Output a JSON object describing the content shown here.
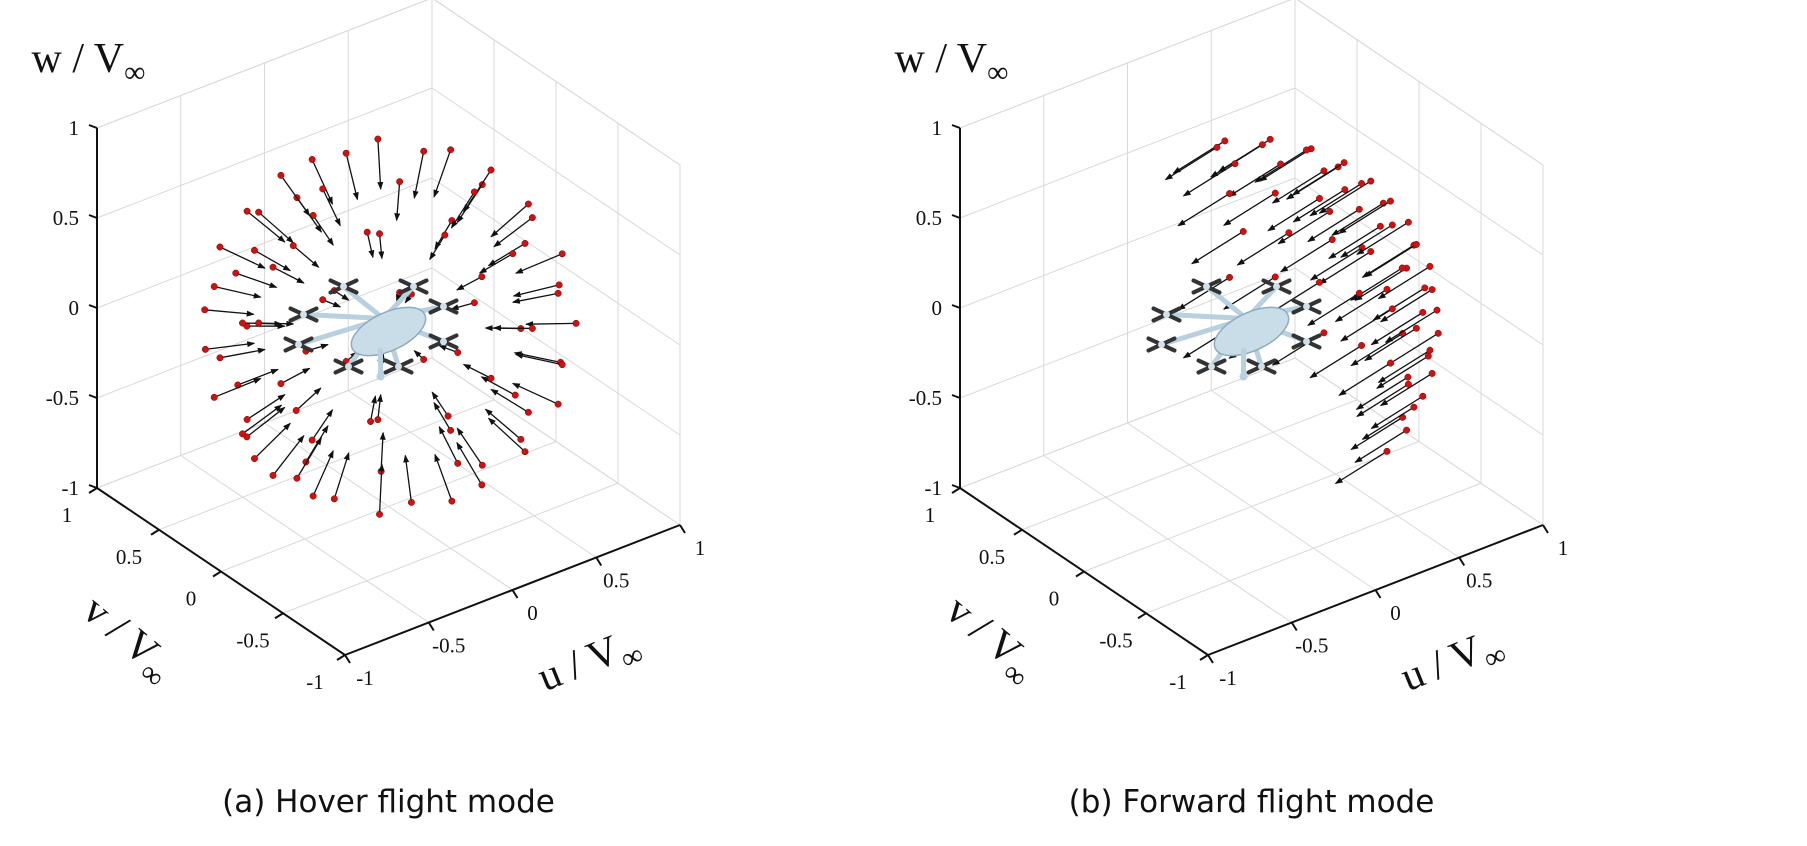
{
  "chart_data": [
    {
      "type": "scatter",
      "subtype": "3d-quiver",
      "caption": "(a) Hover flight mode",
      "xlabel": {
        "main": "u / V",
        "sub": "∞"
      },
      "ylabel": {
        "main": "v / V",
        "sub": "∞"
      },
      "zlabel": {
        "main": "w / V",
        "sub": "∞"
      },
      "xlim": [
        -1,
        1
      ],
      "ylim": [
        -1,
        1
      ],
      "zlim": [
        -1,
        1
      ],
      "xticks": [
        "-1",
        "-0.5",
        "0",
        "0.5",
        "1"
      ],
      "yticks": [
        "-1",
        "-0.5",
        "0",
        "0.5",
        "1"
      ],
      "zticks": [
        "-1",
        "-0.5",
        "0",
        "0.5",
        "1"
      ],
      "grid": true,
      "field": {
        "sample_radius": 0.9,
        "elevations_deg": [
          -60,
          -40,
          -20,
          0,
          20,
          40,
          60
        ],
        "azimuth_step_deg": 24,
        "azimuth_range_deg": [
          -180,
          180
        ],
        "flow": "inward",
        "speed": 0.24,
        "bias": [
          0,
          0,
          0
        ]
      },
      "marker_color": "#d11010",
      "arrow_color": "#111111",
      "model_color": "#c9dde9"
    },
    {
      "type": "scatter",
      "subtype": "3d-quiver",
      "caption": "(b) Forward flight mode",
      "xlabel": {
        "main": "u / V",
        "sub": "∞"
      },
      "ylabel": {
        "main": "v / V",
        "sub": "∞"
      },
      "zlabel": {
        "main": "w / V",
        "sub": "∞"
      },
      "xlim": [
        -1,
        1
      ],
      "ylim": [
        -1,
        1
      ],
      "zlim": [
        -1,
        1
      ],
      "xticks": [
        "-1",
        "-0.5",
        "0",
        "0.5",
        "1"
      ],
      "yticks": [
        "-1",
        "-0.5",
        "0",
        "0.5",
        "1"
      ],
      "zticks": [
        "-1",
        "-0.5",
        "0",
        "0.5",
        "1"
      ],
      "grid": true,
      "field": {
        "sample_radius": 0.9,
        "elevations_deg": [
          -30,
          -15,
          0,
          15,
          30,
          45,
          60
        ],
        "azimuth_step_deg": 14,
        "azimuth_range_deg": [
          -70,
          70
        ],
        "flow": "uniform",
        "speed": 0.3,
        "bias": [
          -0.95,
          0.1,
          -0.3
        ]
      },
      "marker_color": "#d11010",
      "arrow_color": "#111111",
      "model_color": "#c9dde9"
    }
  ]
}
